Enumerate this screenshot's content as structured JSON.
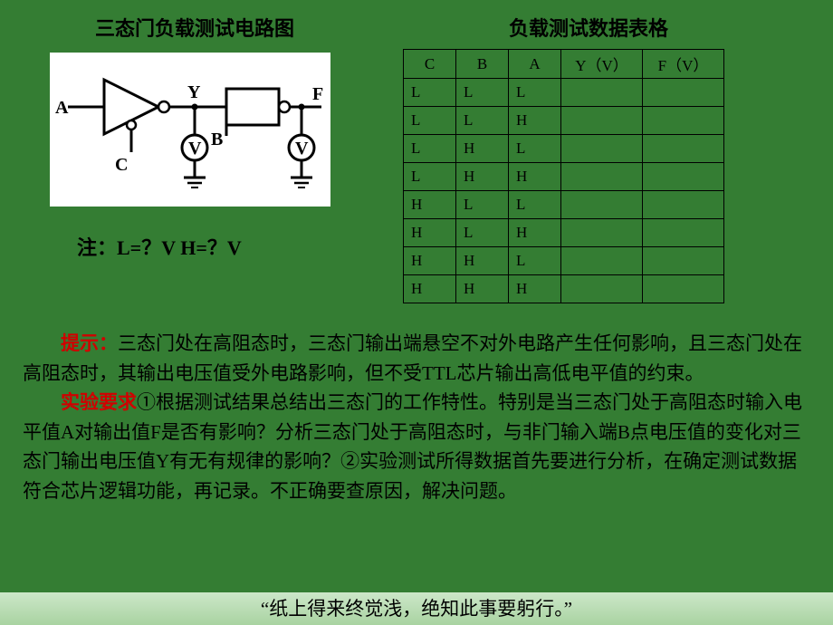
{
  "circuit": {
    "title": "三态门负载测试电路图",
    "note": "注：L=？V  H=？V",
    "labels": {
      "A": "A",
      "B": "B",
      "C": "C",
      "Y": "Y",
      "F": "F",
      "V": "V"
    }
  },
  "table": {
    "title": "负载测试数据表格",
    "columns": [
      "C",
      "B",
      "A",
      "Y（V）",
      "F（V）"
    ],
    "rows": [
      [
        "L",
        "L",
        "L",
        "",
        ""
      ],
      [
        "L",
        "L",
        "H",
        "",
        ""
      ],
      [
        "L",
        "H",
        "L",
        "",
        ""
      ],
      [
        "L",
        "H",
        "H",
        "",
        ""
      ],
      [
        "H",
        "L",
        "L",
        "",
        ""
      ],
      [
        "H",
        "L",
        "H",
        "",
        ""
      ],
      [
        "H",
        "H",
        "L",
        "",
        ""
      ],
      [
        "H",
        "H",
        "H",
        "",
        ""
      ]
    ]
  },
  "hint": {
    "label": "提示：",
    "text": "三态门处在高阻态时，三态门输出端悬空不对外电路产生任何影响，且三态门处在高阻态时，其输出电压值受外电路影响，但不受TTL芯片输出高低电平值的约束。"
  },
  "requirement": {
    "label": "实验要求",
    "text": "①根据测试结果总结出三态门的工作特性。特别是当三态门处于高阻态时输入电平值A对输出值F是否有影响？分析三态门处于高阻态时，与非门输入端B点电压值的变化对三态门输出电压值Y有无有规律的影响？②实验测试所得数据首先要进行分析，在确定测试数据符合芯片逻辑功能，再记录。不正确要查原因，解决问题。"
  },
  "quote": "“纸上得来终觉浅，绝知此事要躬行。”",
  "colors": {
    "background": "#347d33",
    "text": "#000000",
    "highlight": "#d00000",
    "quote_bar_top": "#cde7c9",
    "quote_bar_bottom": "#a9d3a1",
    "circuit_bg": "#ffffff"
  }
}
